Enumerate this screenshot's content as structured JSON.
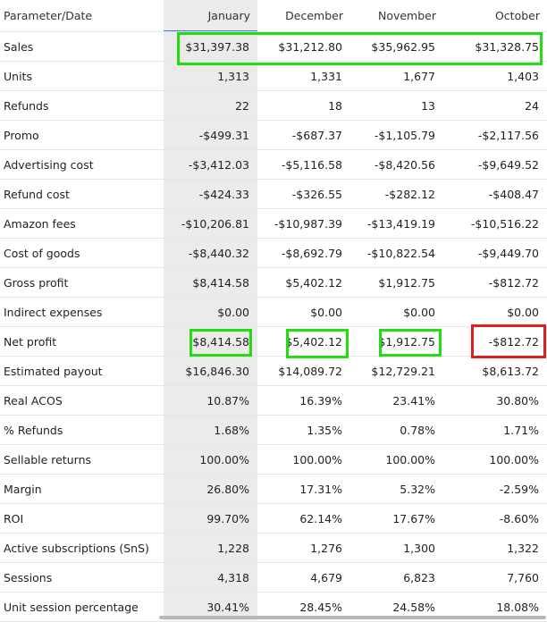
{
  "table": {
    "header": [
      "Parameter/Date",
      "January",
      "December",
      "November",
      "October"
    ],
    "rows": [
      {
        "label": "Sales",
        "values": [
          "$31,397.38",
          "$31,212.80",
          "$35,962.95",
          "$31,328.75"
        ]
      },
      {
        "label": "Units",
        "values": [
          "1,313",
          "1,331",
          "1,677",
          "1,403"
        ]
      },
      {
        "label": "Refunds",
        "values": [
          "22",
          "18",
          "13",
          "24"
        ]
      },
      {
        "label": "Promo",
        "values": [
          "-$499.31",
          "-$687.37",
          "-$1,105.79",
          "-$2,117.56"
        ]
      },
      {
        "label": "Advertising cost",
        "values": [
          "-$3,412.03",
          "-$5,116.58",
          "-$8,420.56",
          "-$9,649.52"
        ]
      },
      {
        "label": "Refund cost",
        "values": [
          "-$424.33",
          "-$326.55",
          "-$282.12",
          "-$408.47"
        ]
      },
      {
        "label": "Amazon fees",
        "values": [
          "-$10,206.81",
          "-$10,987.39",
          "-$13,419.19",
          "-$10,516.22"
        ]
      },
      {
        "label": "Cost of goods",
        "values": [
          "-$8,440.32",
          "-$8,692.79",
          "-$10,822.54",
          "-$9,449.70"
        ]
      },
      {
        "label": "Gross profit",
        "values": [
          "$8,414.58",
          "$5,402.12",
          "$1,912.75",
          "-$812.72"
        ]
      },
      {
        "label": "Indirect expenses",
        "values": [
          "$0.00",
          "$0.00",
          "$0.00",
          "$0.00"
        ]
      },
      {
        "label": "Net profit",
        "values": [
          "$8,414.58",
          "$5,402.12",
          "$1,912.75",
          "-$812.72"
        ]
      },
      {
        "label": "Estimated payout",
        "values": [
          "$16,846.30",
          "$14,089.72",
          "$12,729.21",
          "$8,613.72"
        ]
      },
      {
        "label": "Real ACOS",
        "values": [
          "10.87%",
          "16.39%",
          "23.41%",
          "30.80%"
        ]
      },
      {
        "label": "% Refunds",
        "values": [
          "1.68%",
          "1.35%",
          "0.78%",
          "1.71%"
        ]
      },
      {
        "label": "Sellable returns",
        "values": [
          "100.00%",
          "100.00%",
          "100.00%",
          "100.00%"
        ]
      },
      {
        "label": "Margin",
        "values": [
          "26.80%",
          "17.31%",
          "5.32%",
          "-2.59%"
        ]
      },
      {
        "label": "ROI",
        "values": [
          "99.70%",
          "62.14%",
          "17.67%",
          "-8.60%"
        ]
      },
      {
        "label": "Active subscriptions (SnS)",
        "values": [
          "1,228",
          "1,276",
          "1,300",
          "1,322"
        ]
      },
      {
        "label": "Sessions",
        "values": [
          "4,318",
          "4,679",
          "6,823",
          "7,760"
        ]
      },
      {
        "label": "Unit session percentage",
        "values": [
          "30.41%",
          "28.45%",
          "24.58%",
          "18.08%"
        ]
      }
    ]
  },
  "colors": {
    "highlight_green": "#22dd0f",
    "highlight_red": "#e21d1d",
    "active_column_bg": "#ebebeb",
    "active_column_underline": "#3a7bd5"
  }
}
